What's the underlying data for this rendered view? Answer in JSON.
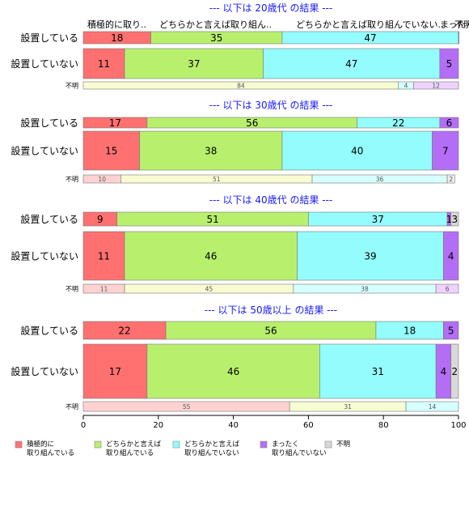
{
  "chart_data": {
    "type": "bar",
    "orientation": "horizontal",
    "stacked": "percent",
    "xlim": [
      0,
      100
    ],
    "x_ticks": [
      0,
      20,
      40,
      60,
      80,
      100
    ],
    "column_headers": [
      "積極的に取り..",
      "どちらかと言えば取り組ん..",
      "どちらかと言えば取り組んでいない..",
      "まったく..",
      "不明"
    ],
    "categories": [
      "積極的に取り組んでいる",
      "どちらかと言えば取り組んでいる",
      "どちらかと言えば取り組んでいない",
      "まったく取り組んでいない",
      "不明"
    ],
    "legend": [
      {
        "label": [
          "積極的に",
          "取り組んでいる"
        ],
        "color": "#ff7070"
      },
      {
        "label": [
          "どちらかと言えば",
          "取り組んでいる"
        ],
        "color": "#b8f06e"
      },
      {
        "label": [
          "どちらかと言えば",
          "取り組んでいない"
        ],
        "color": "#94fcfc"
      },
      {
        "label": [
          "まったく",
          "取り組んでいない"
        ],
        "color": "#b36ef5"
      },
      {
        "label": [
          "不明"
        ],
        "color": "#d8d8d8"
      }
    ],
    "colors": [
      "#ff7070",
      "#b8f06e",
      "#94fcfc",
      "#b36ef5",
      "#d8d8d8"
    ],
    "pale_colors": [
      "#ffd2d2",
      "#f7fcd2",
      "#d6ffff",
      "#efd2ff",
      "#eeeeee"
    ],
    "panels": [
      {
        "title": "--- 以下は 20歳代 の結果 ---",
        "rows": [
          {
            "label": "設置している",
            "values": [
              18,
              35,
              47,
              0,
              0.4
            ],
            "labels": [
              "18",
              "35",
              "47",
              "",
              ""
            ]
          },
          {
            "label": "設置していない",
            "values": [
              11,
              37,
              47,
              5,
              0
            ],
            "labels": [
              "11",
              "37",
              "47",
              "5",
              ""
            ]
          },
          {
            "label": "不明",
            "values": [
              0,
              84,
              4,
              12,
              0
            ],
            "labels": [
              "",
              "84",
              "4",
              "12",
              ""
            ]
          }
        ]
      },
      {
        "title": "--- 以下は 30歳代 の結果 ---",
        "rows": [
          {
            "label": "設置している",
            "values": [
              17,
              56,
              22,
              6,
              0
            ],
            "labels": [
              "17",
              "56",
              "22",
              "6",
              ""
            ]
          },
          {
            "label": "設置していない",
            "values": [
              15,
              38,
              40,
              7,
              0
            ],
            "labels": [
              "15",
              "38",
              "40",
              "7",
              ""
            ]
          },
          {
            "label": "不明",
            "values": [
              10,
              51,
              36,
              0,
              2
            ],
            "labels": [
              "10",
              "51",
              "36",
              "",
              "2"
            ]
          }
        ]
      },
      {
        "title": "--- 以下は 40歳代 の結果 ---",
        "rows": [
          {
            "label": "設置している",
            "values": [
              9,
              51,
              37,
              1,
              3
            ],
            "labels": [
              "9",
              "51",
              "37",
              "1",
              "3"
            ]
          },
          {
            "label": "設置していない",
            "values": [
              11,
              46,
              39,
              4,
              0
            ],
            "labels": [
              "11",
              "46",
              "39",
              "4",
              ""
            ]
          },
          {
            "label": "不明",
            "values": [
              11,
              45,
              38,
              6,
              0
            ],
            "labels": [
              "11",
              "45",
              "38",
              "6",
              ""
            ]
          }
        ]
      },
      {
        "title": "--- 以下は 50歳以上 の結果 ---",
        "rows": [
          {
            "label": "設置している",
            "values": [
              22,
              56,
              18,
              5,
              0
            ],
            "labels": [
              "22",
              "56",
              "18",
              "5",
              ""
            ]
          },
          {
            "label": "設置していない",
            "values": [
              17,
              46,
              31,
              4,
              2
            ],
            "labels": [
              "17",
              "46",
              "31",
              "4",
              "2"
            ]
          },
          {
            "label": "不明",
            "values": [
              55,
              31,
              14,
              0,
              0
            ],
            "labels": [
              "55",
              "31",
              "14",
              "",
              ""
            ]
          }
        ]
      }
    ]
  }
}
